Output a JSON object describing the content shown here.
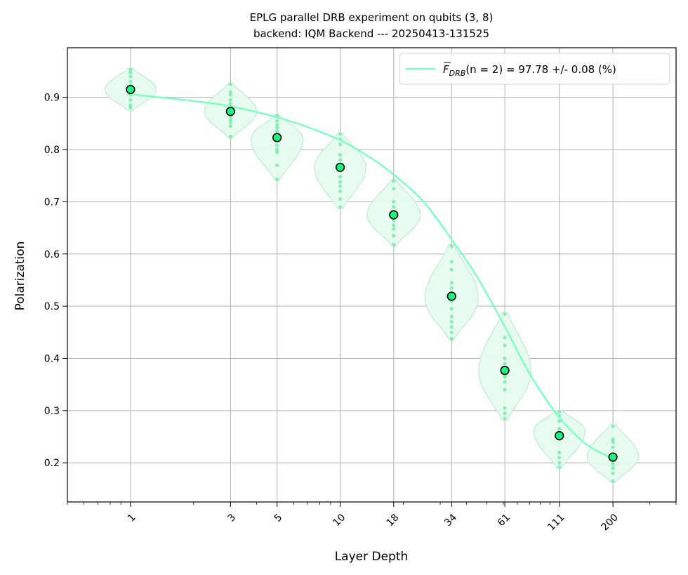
{
  "chart_data": {
    "type": "scatter",
    "title_line1": "EPLG parallel DRB experiment on qubits (3, 8)",
    "title_line2": "backend: IQM Backend --- 20250413-131525",
    "xlabel": "Layer Depth",
    "ylabel": "Polarization",
    "xscale": "log",
    "xlim": [
      0.5,
      400
    ],
    "ylim": [
      0.125,
      0.995
    ],
    "grid": true,
    "legend_position": "top-right",
    "x_tick_labels": [
      "1",
      "3",
      "5",
      "10",
      "18",
      "34",
      "61",
      "111",
      "200"
    ],
    "y_ticks": [
      0.2,
      0.3,
      0.4,
      0.5,
      0.6,
      0.7,
      0.8,
      0.9
    ],
    "y_tick_labels": [
      "0.2",
      "0.3",
      "0.4",
      "0.5",
      "0.6",
      "0.7",
      "0.8",
      "0.9"
    ],
    "colors": {
      "fit": "#7dffc4",
      "violin_fill": "#e6fbef",
      "violin_edge": "#c8efd6",
      "samples": "#6ae8a6",
      "mean_marker": "#19f57d",
      "mean_edge": "#000000",
      "grid": "#b0b0b0"
    },
    "series": [
      {
        "name": "mean polarization",
        "x": [
          1,
          3,
          5,
          10,
          18,
          34,
          61,
          111,
          200
        ],
        "y": [
          0.915,
          0.873,
          0.823,
          0.766,
          0.675,
          0.519,
          0.377,
          0.252,
          0.211
        ]
      },
      {
        "name": "fit",
        "x": [
          1,
          2,
          3,
          5,
          7,
          10,
          14,
          18,
          25,
          34,
          45,
          61,
          80,
          111,
          150,
          200
        ],
        "y": [
          0.906,
          0.893,
          0.883,
          0.862,
          0.843,
          0.818,
          0.784,
          0.752,
          0.7,
          0.628,
          0.556,
          0.461,
          0.371,
          0.287,
          0.235,
          0.208
        ]
      }
    ],
    "samples": [
      {
        "x": 1,
        "y": [
          0.953,
          0.948,
          0.94,
          0.93,
          0.922,
          0.918,
          0.912,
          0.905,
          0.895,
          0.885,
          0.88
        ]
      },
      {
        "x": 3,
        "y": [
          0.925,
          0.91,
          0.905,
          0.895,
          0.888,
          0.88,
          0.872,
          0.865,
          0.858,
          0.852,
          0.845,
          0.825
        ]
      },
      {
        "x": 5,
        "y": [
          0.865,
          0.855,
          0.848,
          0.842,
          0.835,
          0.828,
          0.818,
          0.808,
          0.8,
          0.795,
          0.77,
          0.743
        ]
      },
      {
        "x": 10,
        "y": [
          0.83,
          0.82,
          0.81,
          0.79,
          0.78,
          0.768,
          0.76,
          0.748,
          0.738,
          0.73,
          0.72,
          0.705,
          0.69
        ]
      },
      {
        "x": 18,
        "y": [
          0.74,
          0.725,
          0.7,
          0.69,
          0.68,
          0.675,
          0.665,
          0.655,
          0.648,
          0.635,
          0.618
        ]
      },
      {
        "x": 34,
        "y": [
          0.615,
          0.585,
          0.57,
          0.545,
          0.535,
          0.52,
          0.51,
          0.495,
          0.48,
          0.47,
          0.46,
          0.45,
          0.438
        ]
      },
      {
        "x": 61,
        "y": [
          0.485,
          0.44,
          0.425,
          0.4,
          0.39,
          0.375,
          0.365,
          0.355,
          0.34,
          0.305,
          0.295,
          0.285
        ]
      },
      {
        "x": 111,
        "y": [
          0.298,
          0.29,
          0.28,
          0.265,
          0.255,
          0.245,
          0.22,
          0.21,
          0.2,
          0.192
        ]
      },
      {
        "x": 200,
        "y": [
          0.27,
          0.245,
          0.24,
          0.23,
          0.215,
          0.205,
          0.198,
          0.19,
          0.18,
          0.165
        ]
      }
    ],
    "violins": [
      {
        "x": 1,
        "min": 0.875,
        "max": 0.955,
        "mode": 0.915,
        "half_width_ratio": 1.22
      },
      {
        "x": 3,
        "min": 0.824,
        "max": 0.926,
        "mode": 0.873,
        "half_width_ratio": 1.24
      },
      {
        "x": 5,
        "min": 0.742,
        "max": 0.866,
        "mode": 0.82,
        "half_width_ratio": 1.24
      },
      {
        "x": 10,
        "min": 0.687,
        "max": 0.831,
        "mode": 0.765,
        "half_width_ratio": 1.22
      },
      {
        "x": 18,
        "min": 0.617,
        "max": 0.742,
        "mode": 0.675,
        "half_width_ratio": 1.26
      },
      {
        "x": 34,
        "min": 0.436,
        "max": 0.618,
        "mode": 0.515,
        "half_width_ratio": 1.26
      },
      {
        "x": 61,
        "min": 0.281,
        "max": 0.488,
        "mode": 0.375,
        "half_width_ratio": 1.24
      },
      {
        "x": 111,
        "min": 0.19,
        "max": 0.3,
        "mode": 0.262,
        "half_width_ratio": 1.22
      },
      {
        "x": 200,
        "min": 0.163,
        "max": 0.274,
        "mode": 0.212,
        "half_width_ratio": 1.22
      }
    ],
    "legend": {
      "fmain": "F",
      "fsub": "DRB",
      "rest": "(n = 2) = 97.78 +/- 0.08 (%)"
    }
  }
}
